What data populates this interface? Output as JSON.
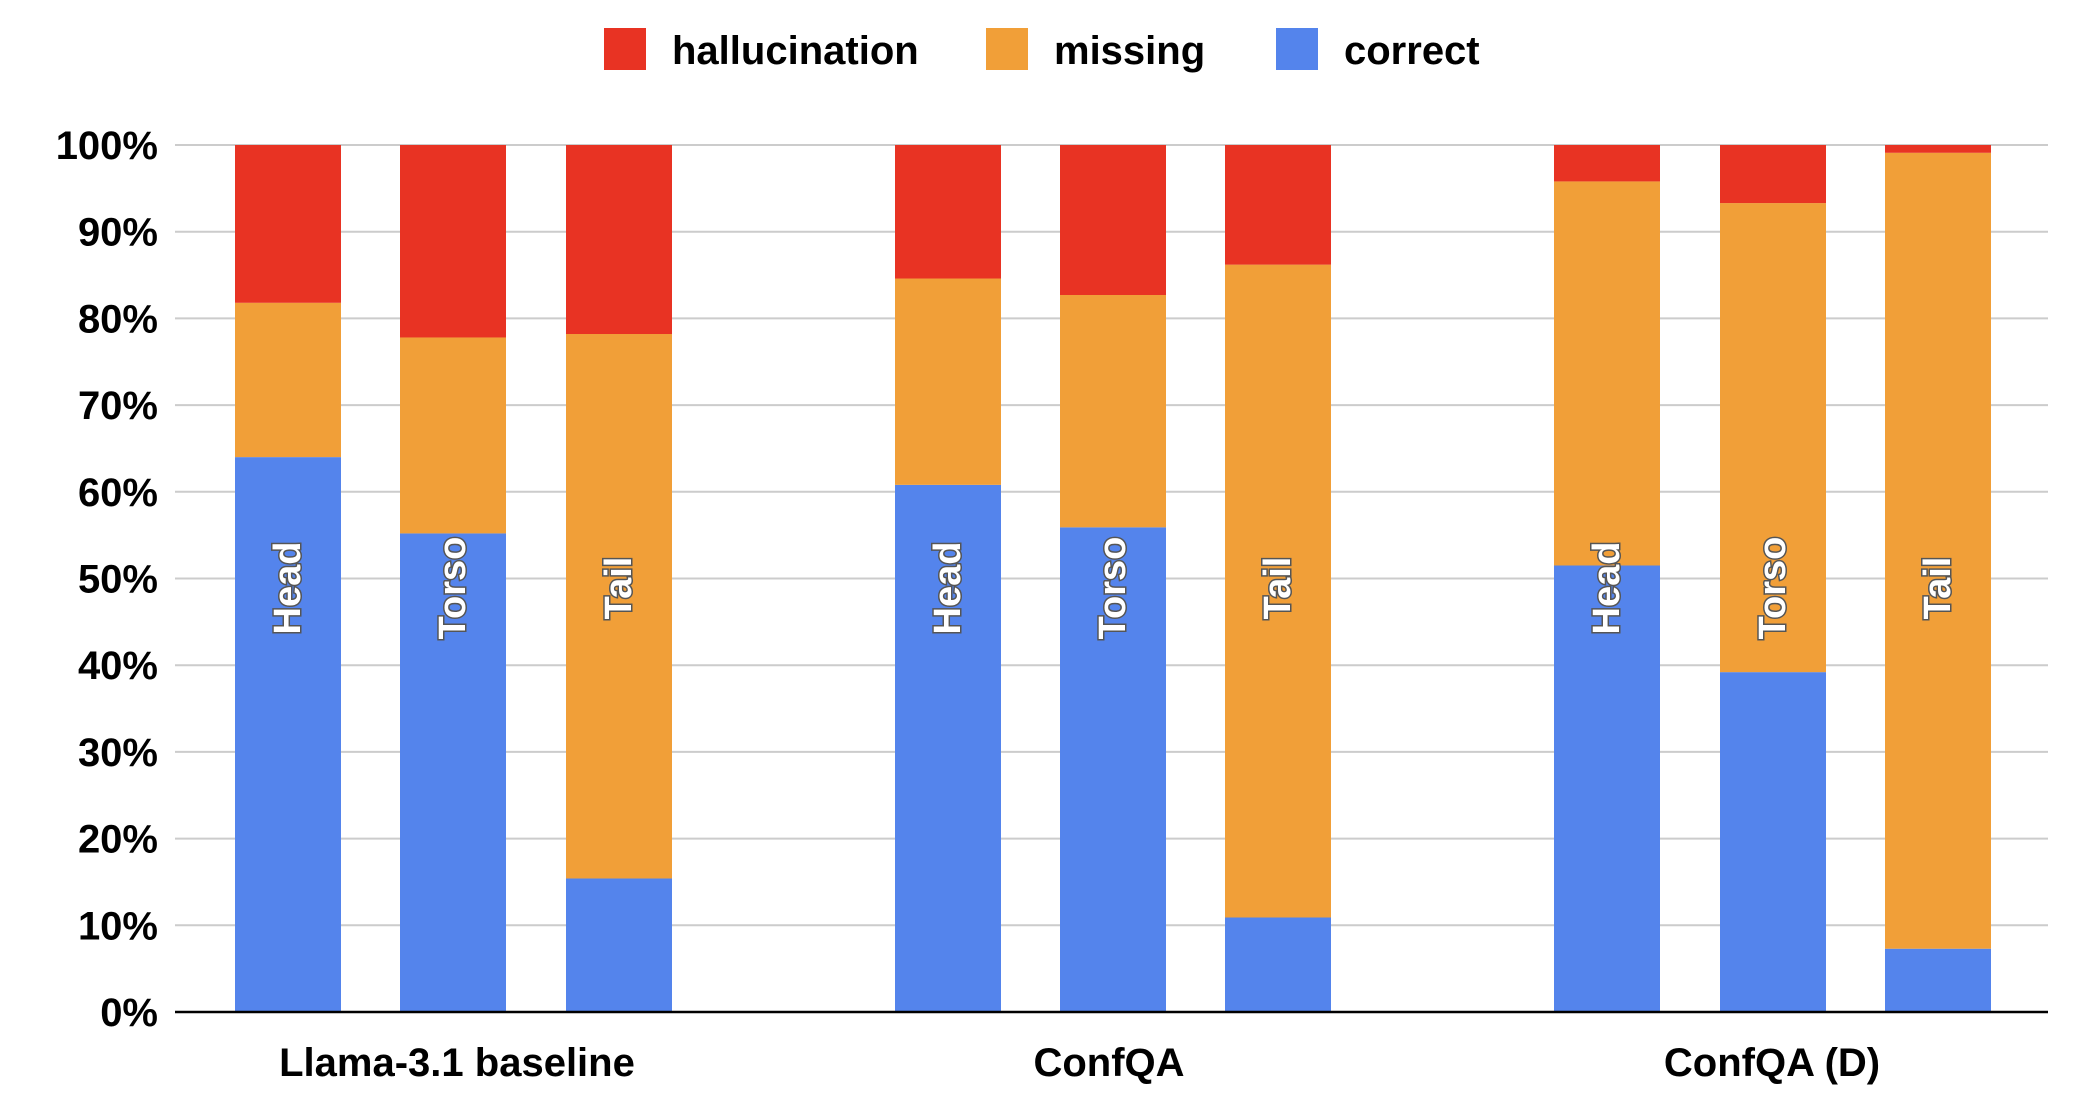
{
  "chart_data": {
    "type": "bar",
    "stacked": true,
    "percent": true,
    "ylim": [
      0,
      100
    ],
    "yticks": [
      "0%",
      "10%",
      "20%",
      "30%",
      "40%",
      "50%",
      "60%",
      "70%",
      "80%",
      "90%",
      "100%"
    ],
    "legend": {
      "position": "top",
      "entries": [
        {
          "name": "hallucination",
          "color": "#e83323"
        },
        {
          "name": "missing",
          "color": "#f19f38"
        },
        {
          "name": "correct",
          "color": "#5484ec"
        }
      ]
    },
    "groups": [
      {
        "name": "Llama-3.1 baseline",
        "bars": [
          {
            "label": "Head",
            "correct": 64,
            "missing": 17.8,
            "hallucination": 18.2
          },
          {
            "label": "Torso",
            "correct": 55.2,
            "missing": 22.6,
            "hallucination": 22.2
          },
          {
            "label": "Tail",
            "correct": 15.4,
            "missing": 62.8,
            "hallucination": 21.8
          }
        ]
      },
      {
        "name": "ConfQA",
        "bars": [
          {
            "label": "Head",
            "correct": 60.8,
            "missing": 23.8,
            "hallucination": 15.4
          },
          {
            "label": "Torso",
            "correct": 55.9,
            "missing": 26.8,
            "hallucination": 17.3
          },
          {
            "label": "Tail",
            "correct": 10.9,
            "missing": 75.3,
            "hallucination": 13.8
          }
        ]
      },
      {
        "name": "ConfQA (D)",
        "bars": [
          {
            "label": "Head",
            "correct": 51.5,
            "missing": 44.3,
            "hallucination": 4.2
          },
          {
            "label": "Torso",
            "correct": 39.2,
            "missing": 54.1,
            "hallucination": 6.7
          },
          {
            "label": "Tail",
            "correct": 7.3,
            "missing": 91.8,
            "hallucination": 0.9
          }
        ]
      }
    ]
  }
}
